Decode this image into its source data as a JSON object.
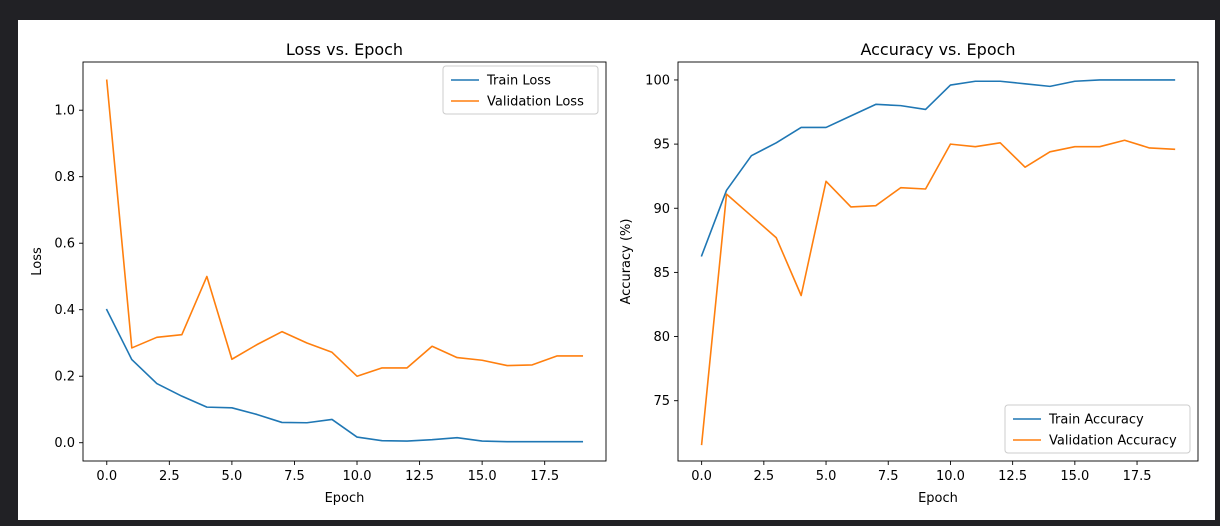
{
  "chart_data": [
    {
      "type": "line",
      "title": "Loss vs. Epoch",
      "xlabel": "Epoch",
      "ylabel": "Loss",
      "xlim": [
        -0.95,
        19.95
      ],
      "ylim": [
        -0.055,
        1.145
      ],
      "xticks": [
        0,
        2.5,
        5,
        7.5,
        10,
        12.5,
        15,
        17.5
      ],
      "xtick_labels": [
        "0.0",
        "2.5",
        "5.0",
        "7.5",
        "10.0",
        "12.5",
        "15.0",
        "17.5"
      ],
      "yticks": [
        0,
        0.2,
        0.4,
        0.6,
        0.8,
        1.0
      ],
      "ytick_labels": [
        "0.0",
        "0.2",
        "0.4",
        "0.6",
        "0.8",
        "1.0"
      ],
      "legend_position": "top-right",
      "grid": false,
      "x": [
        0,
        1,
        2,
        3,
        4,
        5,
        6,
        7,
        8,
        9,
        10,
        11,
        12,
        13,
        14,
        15,
        16,
        17,
        18,
        19
      ],
      "series": [
        {
          "name": "Train Loss",
          "color": "#1f77b4",
          "values": [
            0.4,
            0.25,
            0.178,
            0.14,
            0.107,
            0.105,
            0.085,
            0.061,
            0.06,
            0.07,
            0.017,
            0.006,
            0.005,
            0.009,
            0.015,
            0.005,
            0.003,
            0.003,
            0.003,
            0.003
          ]
        },
        {
          "name": "Validation Loss",
          "color": "#ff7f0e",
          "values": [
            1.09,
            0.285,
            0.317,
            0.325,
            0.5,
            0.251,
            0.295,
            0.334,
            0.3,
            0.272,
            0.2,
            0.225,
            0.225,
            0.29,
            0.256,
            0.248,
            0.232,
            0.234,
            0.261,
            0.261
          ]
        }
      ]
    },
    {
      "type": "line",
      "title": "Accuracy vs. Epoch",
      "xlabel": "Epoch",
      "ylabel": "Accuracy (%)",
      "xlim": [
        -0.95,
        19.95
      ],
      "ylim": [
        70.3,
        101.4
      ],
      "xticks": [
        0,
        2.5,
        5,
        7.5,
        10,
        12.5,
        15,
        17.5
      ],
      "xtick_labels": [
        "0.0",
        "2.5",
        "5.0",
        "7.5",
        "10.0",
        "12.5",
        "15.0",
        "17.5"
      ],
      "yticks": [
        75,
        80,
        85,
        90,
        95,
        100
      ],
      "ytick_labels": [
        "75",
        "80",
        "85",
        "90",
        "95",
        "100"
      ],
      "legend_position": "bottom-right",
      "grid": false,
      "x": [
        0,
        1,
        2,
        3,
        4,
        5,
        6,
        7,
        8,
        9,
        10,
        11,
        12,
        13,
        14,
        15,
        16,
        17,
        18,
        19
      ],
      "series": [
        {
          "name": "Train Accuracy",
          "color": "#1f77b4",
          "values": [
            86.3,
            91.4,
            94.1,
            95.1,
            96.3,
            96.3,
            97.2,
            98.1,
            98.0,
            97.7,
            99.6,
            99.9,
            99.9,
            99.7,
            99.5,
            99.9,
            100.0,
            100.0,
            100.0,
            100.0
          ]
        },
        {
          "name": "Validation Accuracy",
          "color": "#ff7f0e",
          "values": [
            71.6,
            91.1,
            89.4,
            87.7,
            83.2,
            92.1,
            90.1,
            90.2,
            91.6,
            91.5,
            95.0,
            94.8,
            95.1,
            93.2,
            94.4,
            94.8,
            94.8,
            95.3,
            94.7,
            94.6
          ]
        }
      ]
    }
  ]
}
